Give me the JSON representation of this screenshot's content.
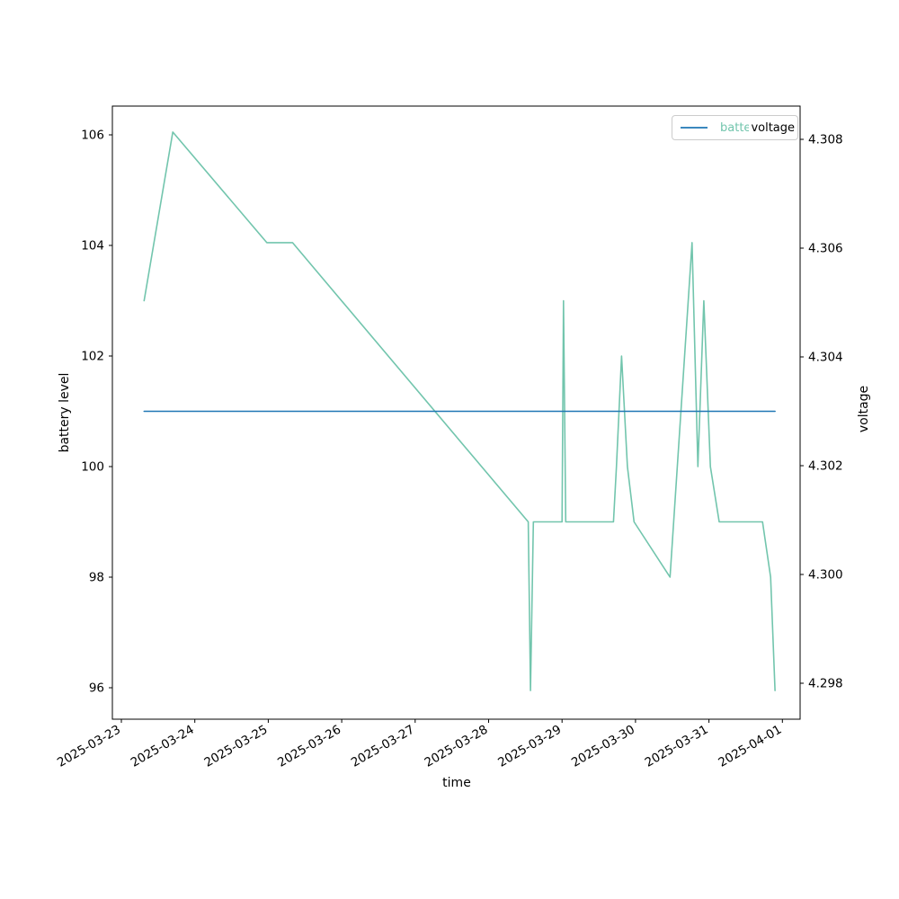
{
  "figure": {
    "background": "#ffffff"
  },
  "chart_data": {
    "type": "line",
    "title": "",
    "x_axis": {
      "label": "time",
      "tick_labels": [
        "2025-03-23",
        "2025-03-24",
        "2025-03-25",
        "2025-03-26",
        "2025-03-27",
        "2025-03-28",
        "2025-03-29",
        "2025-03-30",
        "2025-03-31",
        "2025-04-01"
      ],
      "unit": "days since 2025-03-23 00:00",
      "tick_rotation_deg": 30
    },
    "left_axis": {
      "label": "battery level",
      "ticks": [
        96,
        98,
        100,
        102,
        104,
        106
      ],
      "lim": [
        95.4,
        106.55
      ]
    },
    "right_axis": {
      "label": "voltage",
      "ticks": [
        4.298,
        4.3,
        4.302,
        4.304,
        4.306,
        4.308
      ],
      "lim": [
        4.2973,
        4.3086
      ]
    },
    "series": [
      {
        "name": "battery",
        "axis": "left",
        "color": "#72c5ad",
        "points": [
          [
            0.31,
            103.0
          ],
          [
            0.7,
            106.05
          ],
          [
            1.98,
            104.05
          ],
          [
            2.33,
            104.05
          ],
          [
            5.54,
            99.0
          ],
          [
            5.57,
            95.95
          ],
          [
            5.61,
            99.0
          ],
          [
            6.0,
            99.0
          ],
          [
            6.02,
            103.0
          ],
          [
            6.05,
            99.0
          ],
          [
            6.7,
            99.0
          ],
          [
            6.74,
            100.0
          ],
          [
            6.81,
            102.0
          ],
          [
            6.89,
            100.0
          ],
          [
            6.98,
            99.0
          ],
          [
            7.47,
            98.0
          ],
          [
            7.77,
            104.05
          ],
          [
            7.85,
            100.0
          ],
          [
            7.93,
            103.0
          ],
          [
            8.02,
            100.0
          ],
          [
            8.14,
            99.0
          ],
          [
            8.73,
            99.0
          ],
          [
            8.84,
            98.0
          ],
          [
            8.9,
            95.95
          ]
        ]
      },
      {
        "name": "voltage",
        "axis": "right",
        "color": "#1f77b4",
        "points": [
          [
            0.31,
            4.303
          ],
          [
            8.9,
            4.303
          ]
        ]
      }
    ],
    "legend": {
      "position": "upper right",
      "entries": [
        {
          "label": "battery",
          "color": "#72c5ad"
        },
        {
          "label": "voltage",
          "color": "#1f77b4"
        }
      ]
    }
  }
}
